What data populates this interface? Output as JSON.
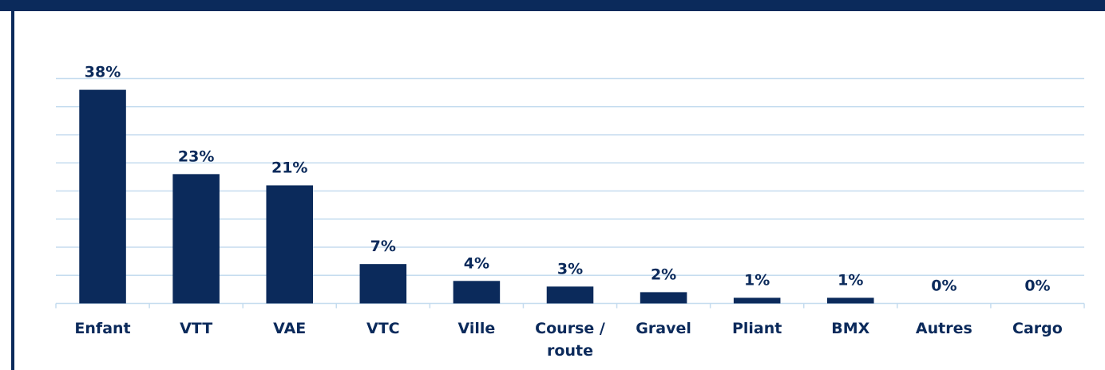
{
  "chart_data": {
    "type": "bar",
    "categories": [
      "Enfant",
      "VTT",
      "VAE",
      "VTC",
      "Ville",
      "Course / route",
      "Gravel",
      "Pliant",
      "BMX",
      "Autres",
      "Cargo"
    ],
    "values": [
      38,
      23,
      21,
      7,
      4,
      3,
      2,
      1,
      1,
      0,
      0
    ],
    "value_labels": [
      "38%",
      "23%",
      "21%",
      "7%",
      "4%",
      "3%",
      "2%",
      "1%",
      "1%",
      "0%",
      "0%"
    ],
    "color": "#0b2a5b",
    "ylim": [
      0,
      40
    ],
    "yticks": [
      0,
      5,
      10,
      15,
      20,
      25,
      30,
      35,
      40
    ],
    "grid": true,
    "y_tick_labels": false
  }
}
